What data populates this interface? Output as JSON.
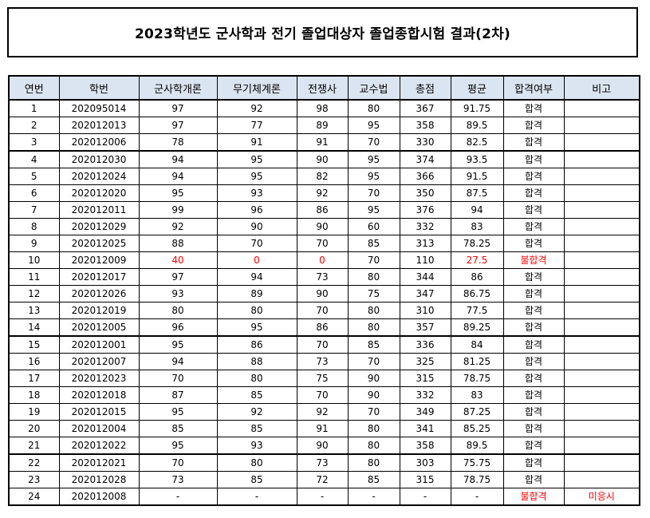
{
  "title": "2023학년도 군사학과 전기 졸업대상자 졸업종합시험 결과(2차)",
  "colors": {
    "header_bg": "#dbe5f1",
    "fail_text": "#ff0000"
  },
  "table": {
    "headers": [
      "연번",
      "학번",
      "군사학개론",
      "무기체계론",
      "전쟁사",
      "교수법",
      "총점",
      "평균",
      "합격여부",
      "비고"
    ],
    "rows": [
      {
        "no": "1",
        "id": "202095014",
        "s1": "97",
        "s2": "92",
        "s3": "98",
        "s4": "80",
        "total": "367",
        "avg": "91.75",
        "result": "합격",
        "note": ""
      },
      {
        "no": "2",
        "id": "202012013",
        "s1": "97",
        "s2": "77",
        "s3": "89",
        "s4": "95",
        "total": "358",
        "avg": "89.5",
        "result": "합격",
        "note": ""
      },
      {
        "no": "3",
        "id": "202012006",
        "s1": "78",
        "s2": "91",
        "s3": "91",
        "s4": "70",
        "total": "330",
        "avg": "82.5",
        "result": "합격",
        "note": ""
      },
      {
        "no": "4",
        "id": "202012030",
        "s1": "94",
        "s2": "95",
        "s3": "90",
        "s4": "95",
        "total": "374",
        "avg": "93.5",
        "result": "합격",
        "note": ""
      },
      {
        "no": "5",
        "id": "202012024",
        "s1": "94",
        "s2": "95",
        "s3": "82",
        "s4": "95",
        "total": "366",
        "avg": "91.5",
        "result": "합격",
        "note": ""
      },
      {
        "no": "6",
        "id": "202012020",
        "s1": "95",
        "s2": "93",
        "s3": "92",
        "s4": "70",
        "total": "350",
        "avg": "87.5",
        "result": "합격",
        "note": ""
      },
      {
        "no": "7",
        "id": "202012011",
        "s1": "99",
        "s2": "96",
        "s3": "86",
        "s4": "95",
        "total": "376",
        "avg": "94",
        "result": "합격",
        "note": ""
      },
      {
        "no": "8",
        "id": "202012029",
        "s1": "92",
        "s2": "90",
        "s3": "90",
        "s4": "60",
        "total": "332",
        "avg": "83",
        "result": "합격",
        "note": ""
      },
      {
        "no": "9",
        "id": "202012025",
        "s1": "88",
        "s2": "70",
        "s3": "70",
        "s4": "85",
        "total": "313",
        "avg": "78.25",
        "result": "합격",
        "note": ""
      },
      {
        "no": "10",
        "id": "202012009",
        "s1": "40",
        "s2": "0",
        "s3": "0",
        "s4": "70",
        "total": "110",
        "avg": "27.5",
        "result": "불합격",
        "note": ""
      },
      {
        "no": "11",
        "id": "202012017",
        "s1": "97",
        "s2": "94",
        "s3": "73",
        "s4": "80",
        "total": "344",
        "avg": "86",
        "result": "합격",
        "note": ""
      },
      {
        "no": "12",
        "id": "202012026",
        "s1": "93",
        "s2": "89",
        "s3": "90",
        "s4": "75",
        "total": "347",
        "avg": "86.75",
        "result": "합격",
        "note": ""
      },
      {
        "no": "13",
        "id": "202012019",
        "s1": "80",
        "s2": "80",
        "s3": "70",
        "s4": "80",
        "total": "310",
        "avg": "77.5",
        "result": "합격",
        "note": ""
      },
      {
        "no": "14",
        "id": "202012005",
        "s1": "96",
        "s2": "95",
        "s3": "86",
        "s4": "80",
        "total": "357",
        "avg": "89.25",
        "result": "합격",
        "note": ""
      },
      {
        "no": "15",
        "id": "202012001",
        "s1": "95",
        "s2": "86",
        "s3": "70",
        "s4": "85",
        "total": "336",
        "avg": "84",
        "result": "합격",
        "note": ""
      },
      {
        "no": "16",
        "id": "202012007",
        "s1": "94",
        "s2": "88",
        "s3": "73",
        "s4": "70",
        "total": "325",
        "avg": "81.25",
        "result": "합격",
        "note": ""
      },
      {
        "no": "17",
        "id": "202012023",
        "s1": "70",
        "s2": "80",
        "s3": "75",
        "s4": "90",
        "total": "315",
        "avg": "78.75",
        "result": "합격",
        "note": ""
      },
      {
        "no": "18",
        "id": "202012018",
        "s1": "87",
        "s2": "85",
        "s3": "70",
        "s4": "90",
        "total": "332",
        "avg": "83",
        "result": "합격",
        "note": ""
      },
      {
        "no": "19",
        "id": "202012015",
        "s1": "95",
        "s2": "92",
        "s3": "92",
        "s4": "70",
        "total": "349",
        "avg": "87.25",
        "result": "합격",
        "note": ""
      },
      {
        "no": "20",
        "id": "202012004",
        "s1": "85",
        "s2": "85",
        "s3": "91",
        "s4": "80",
        "total": "341",
        "avg": "85.25",
        "result": "합격",
        "note": ""
      },
      {
        "no": "21",
        "id": "202012022",
        "s1": "95",
        "s2": "93",
        "s3": "90",
        "s4": "80",
        "total": "358",
        "avg": "89.5",
        "result": "합격",
        "note": ""
      },
      {
        "no": "22",
        "id": "202012021",
        "s1": "70",
        "s2": "80",
        "s3": "73",
        "s4": "80",
        "total": "303",
        "avg": "75.75",
        "result": "합격",
        "note": ""
      },
      {
        "no": "23",
        "id": "202012028",
        "s1": "73",
        "s2": "85",
        "s3": "72",
        "s4": "85",
        "total": "315",
        "avg": "78.75",
        "result": "합격",
        "note": ""
      },
      {
        "no": "24",
        "id": "202012008",
        "s1": "-",
        "s2": "-",
        "s3": "-",
        "s4": "-",
        "total": "-",
        "avg": "-",
        "result": "불합격",
        "note": "미응시"
      }
    ]
  }
}
